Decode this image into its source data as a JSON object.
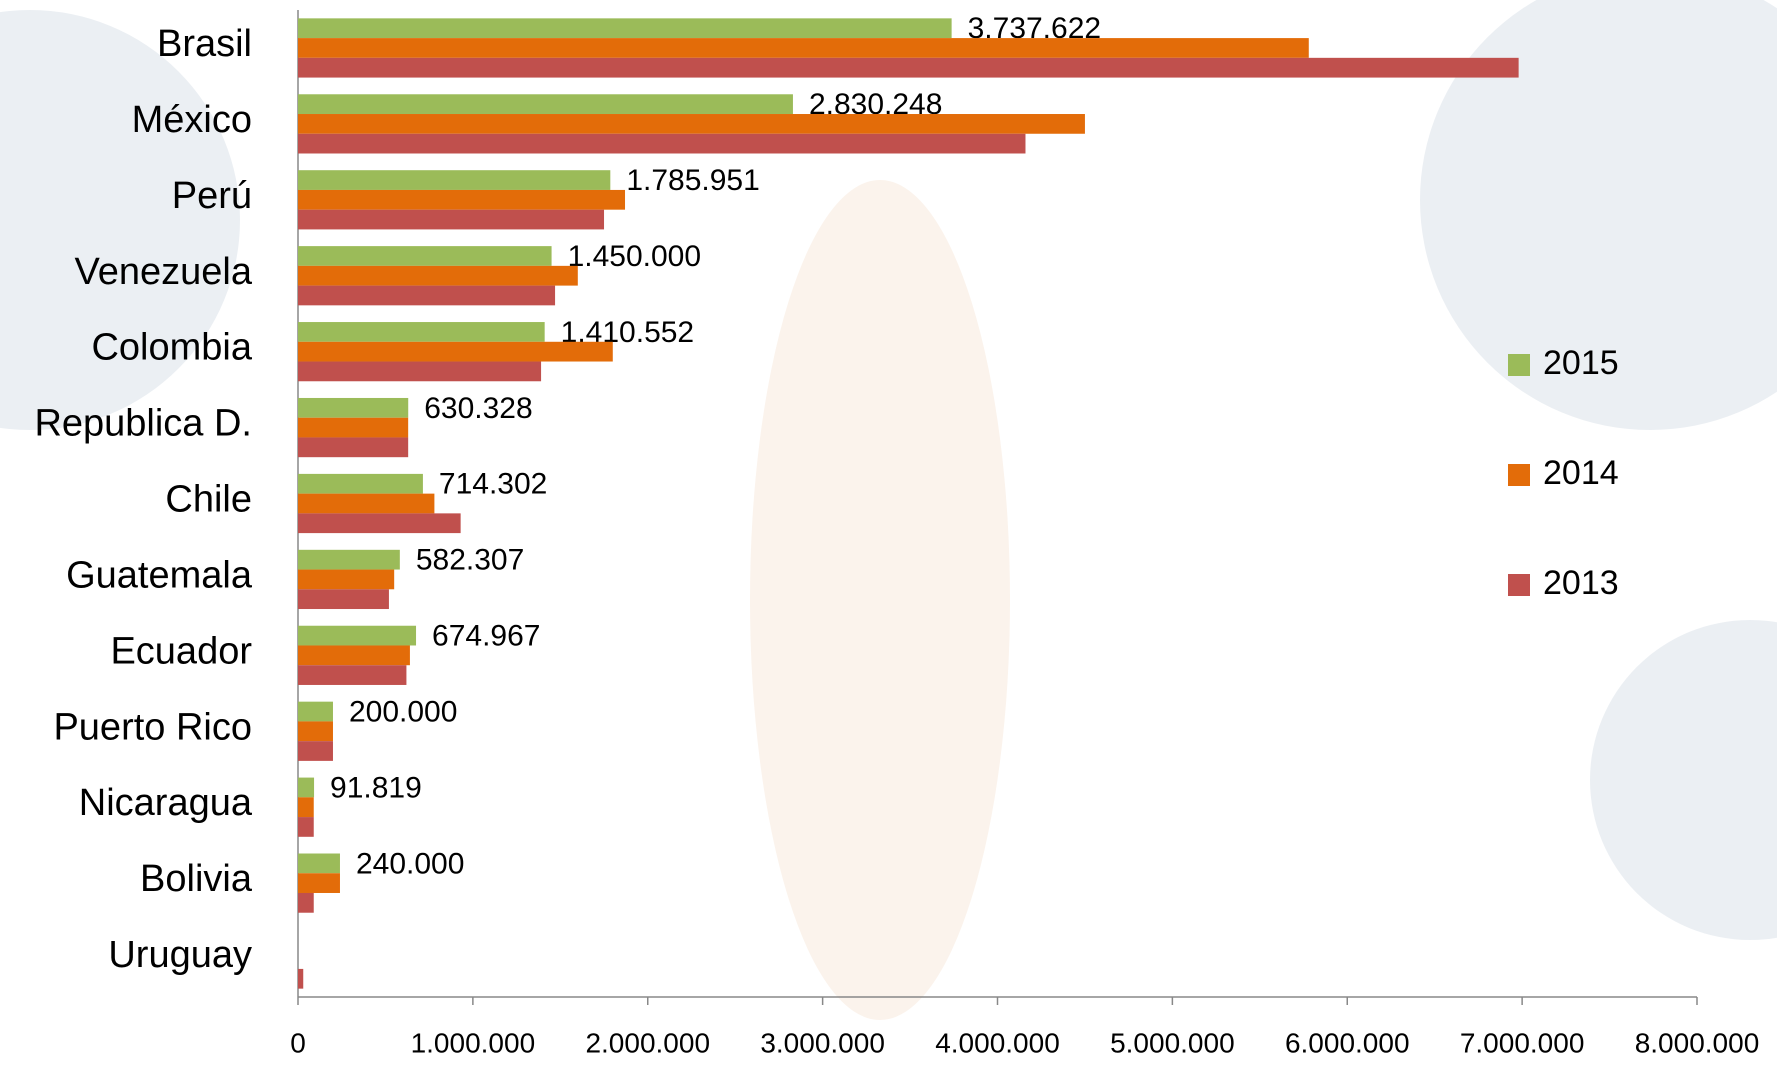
{
  "chart_data": {
    "type": "hbar",
    "categories": [
      "Brasil",
      "México",
      "Perú",
      "Venezuela",
      "Colombia",
      "Republica D.",
      "Chile",
      "Guatemala",
      "Ecuador",
      "Puerto Rico",
      "Nicaragua",
      "Bolivia",
      "Uruguay"
    ],
    "series": [
      {
        "name": "2015",
        "color": "#9bbb59",
        "values": [
          3737622,
          2830248,
          1785951,
          1450000,
          1410552,
          630328,
          714302,
          582307,
          674967,
          200000,
          91819,
          240000,
          null
        ],
        "value_labels": [
          "3.737.622",
          "2.830.248",
          "1.785.951",
          "1.450.000",
          "1.410.552",
          "630.328",
          "714.302",
          "582.307",
          "674.967",
          "200.000",
          "91.819",
          "240.000",
          null
        ]
      },
      {
        "name": "2014",
        "color": "#e36c09",
        "values": [
          5780000,
          4500000,
          1870000,
          1600000,
          1800000,
          630000,
          780000,
          550000,
          640000,
          200000,
          90000,
          240000,
          null
        ]
      },
      {
        "name": "2013",
        "color": "#c0504d",
        "values": [
          6980000,
          4160000,
          1750000,
          1470000,
          1390000,
          630000,
          930000,
          520000,
          620000,
          200000,
          90000,
          90000,
          30000
        ]
      }
    ],
    "xlim": [
      0,
      8000000
    ],
    "xticks": [
      0,
      {
        "value": 1000000,
        "label": "1.000.000"
      },
      {
        "value": 2000000,
        "label": "2.000.000"
      },
      {
        "value": 3000000,
        "label": "3.000.000"
      },
      {
        "value": 4000000,
        "label": "4.000.000"
      },
      {
        "value": 5000000,
        "label": "5.000.000"
      },
      {
        "value": 6000000,
        "label": "6.000.000"
      },
      {
        "value": 7000000,
        "label": "7.000.000"
      },
      {
        "value": 8000000,
        "label": "8.000.000"
      }
    ],
    "legend": "right"
  }
}
